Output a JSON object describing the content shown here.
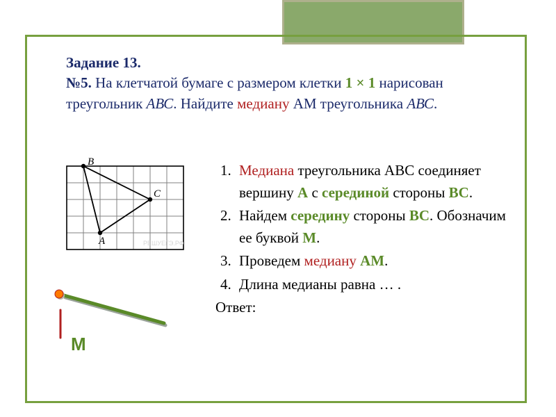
{
  "problem": {
    "heading": "Задание 13.",
    "num_label": "№5.",
    "p1_a": " На клетчатой бумаге с размером клетки ",
    "grid_size": "1 × 1",
    "p1_b": " нарисован треугольник ",
    "abc": "АВС",
    "p1_c": ". Найдите ",
    "median_word": "медиану",
    "p1_d": " АМ треугольника ",
    "p1_e": "."
  },
  "steps": {
    "s1_a": "Медиана",
    "s1_b": " треугольника АВС соединяет вершину ",
    "s1_c": "А",
    "s1_d": " с ",
    "s1_e": "серединой",
    "s1_f": " стороны ",
    "s1_g": "ВС",
    "s1_h": ".",
    "s2_a": "Найдем ",
    "s2_b": "середину",
    "s2_c": " стороны ",
    "s2_d": "ВС",
    "s2_e": ". Обозначим ее буквой ",
    "s2_f": "М",
    "s2_g": ".",
    "s3_a": "Проведем ",
    "s3_b": "медиану",
    "s3_c": " ",
    "s3_d": "АМ",
    "s3_e": ".",
    "s4": "Длина медианы равна … .",
    "answer_label": "Ответ:"
  },
  "labels": {
    "A": "A",
    "B": "B",
    "C": "C",
    "M": "М"
  },
  "grid": {
    "cols": 7,
    "rows": 5,
    "cell": 24,
    "B": [
      1,
      0
    ],
    "A": [
      2,
      4
    ],
    "C": [
      5,
      2
    ],
    "stroke": "#000000",
    "fill": "#000000",
    "grid_stroke": "#808080",
    "border_stroke": "#000000",
    "label_font": "italic 15px Georgia, serif",
    "watermark_font": "9px Arial",
    "watermark_color": "#d6d6d6",
    "watermark_text": "РЕШУЕГЭ.РФ"
  },
  "decor": {
    "dot_color": "#ff7a00",
    "dot_border": "#b02020",
    "green_line_color": "#5a8a28",
    "red_line_color": "#b02020"
  }
}
